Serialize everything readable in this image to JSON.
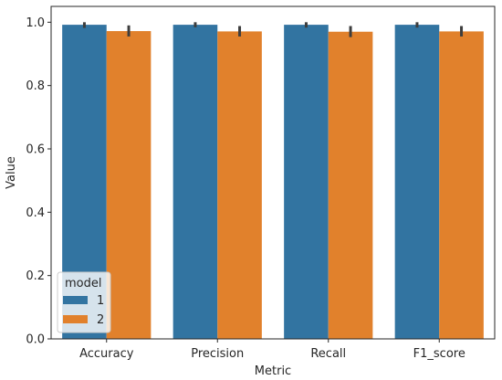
{
  "chart_data": {
    "type": "bar",
    "title": "",
    "xlabel": "Metric",
    "ylabel": "Value",
    "categories": [
      "Accuracy",
      "Precision",
      "Recall",
      "F1_score"
    ],
    "ylim": [
      0,
      1.05
    ],
    "yticks": [
      "0.0",
      "0.2",
      "0.4",
      "0.6",
      "0.8",
      "1.0"
    ],
    "grid": false,
    "legend": {
      "title": "model",
      "placement": "lower-left"
    },
    "series": [
      {
        "name": "1",
        "color": "#3274a1",
        "values": [
          0.992,
          0.992,
          0.992,
          0.992
        ],
        "err_low": [
          0.982,
          0.984,
          0.983,
          0.983
        ],
        "err_high": [
          1.0,
          1.0,
          1.0,
          1.0
        ]
      },
      {
        "name": "2",
        "color": "#e1812c",
        "values": [
          0.972,
          0.971,
          0.97,
          0.971
        ],
        "err_low": [
          0.955,
          0.955,
          0.953,
          0.955
        ],
        "err_high": [
          0.99,
          0.988,
          0.988,
          0.988
        ]
      }
    ]
  }
}
